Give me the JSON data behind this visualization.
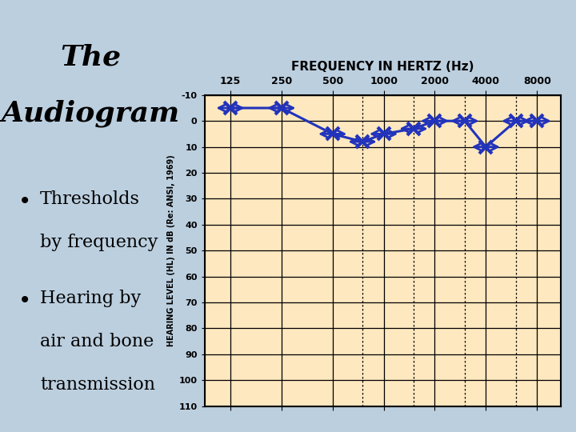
{
  "title_line1": "The",
  "title_line2": "Audiogram",
  "bullet1_line1": "Thresholds",
  "bullet1_line2": "by frequency",
  "bullet2_line1": "Hearing by",
  "bullet2_line2": "air and bone",
  "bullet2_line3": "transmission",
  "freq_main": [
    125,
    250,
    500,
    1000,
    2000,
    4000,
    8000
  ],
  "freq_inter": [
    750,
    1500,
    3000,
    6000
  ],
  "y_ticks": [
    -10,
    0,
    10,
    20,
    30,
    40,
    50,
    60,
    70,
    80,
    90,
    100,
    110
  ],
  "y_min": -10,
  "y_max": 110,
  "x_pts": [
    125,
    250,
    500,
    750,
    1000,
    1500,
    2000,
    3000,
    4000,
    6000,
    8000
  ],
  "y_pts": [
    -5,
    -5,
    5,
    8,
    5,
    3,
    0,
    0,
    10,
    0,
    0
  ],
  "background_slide": "#bccfdf",
  "background_plot": "#fde8c0",
  "line_color": "#2233bb",
  "freq_title": "FREQUENCY IN HERTZ (Hz)",
  "ylabel": "HEARING LEVEL (HL) IN dB (Re: ANSI, 1969)"
}
